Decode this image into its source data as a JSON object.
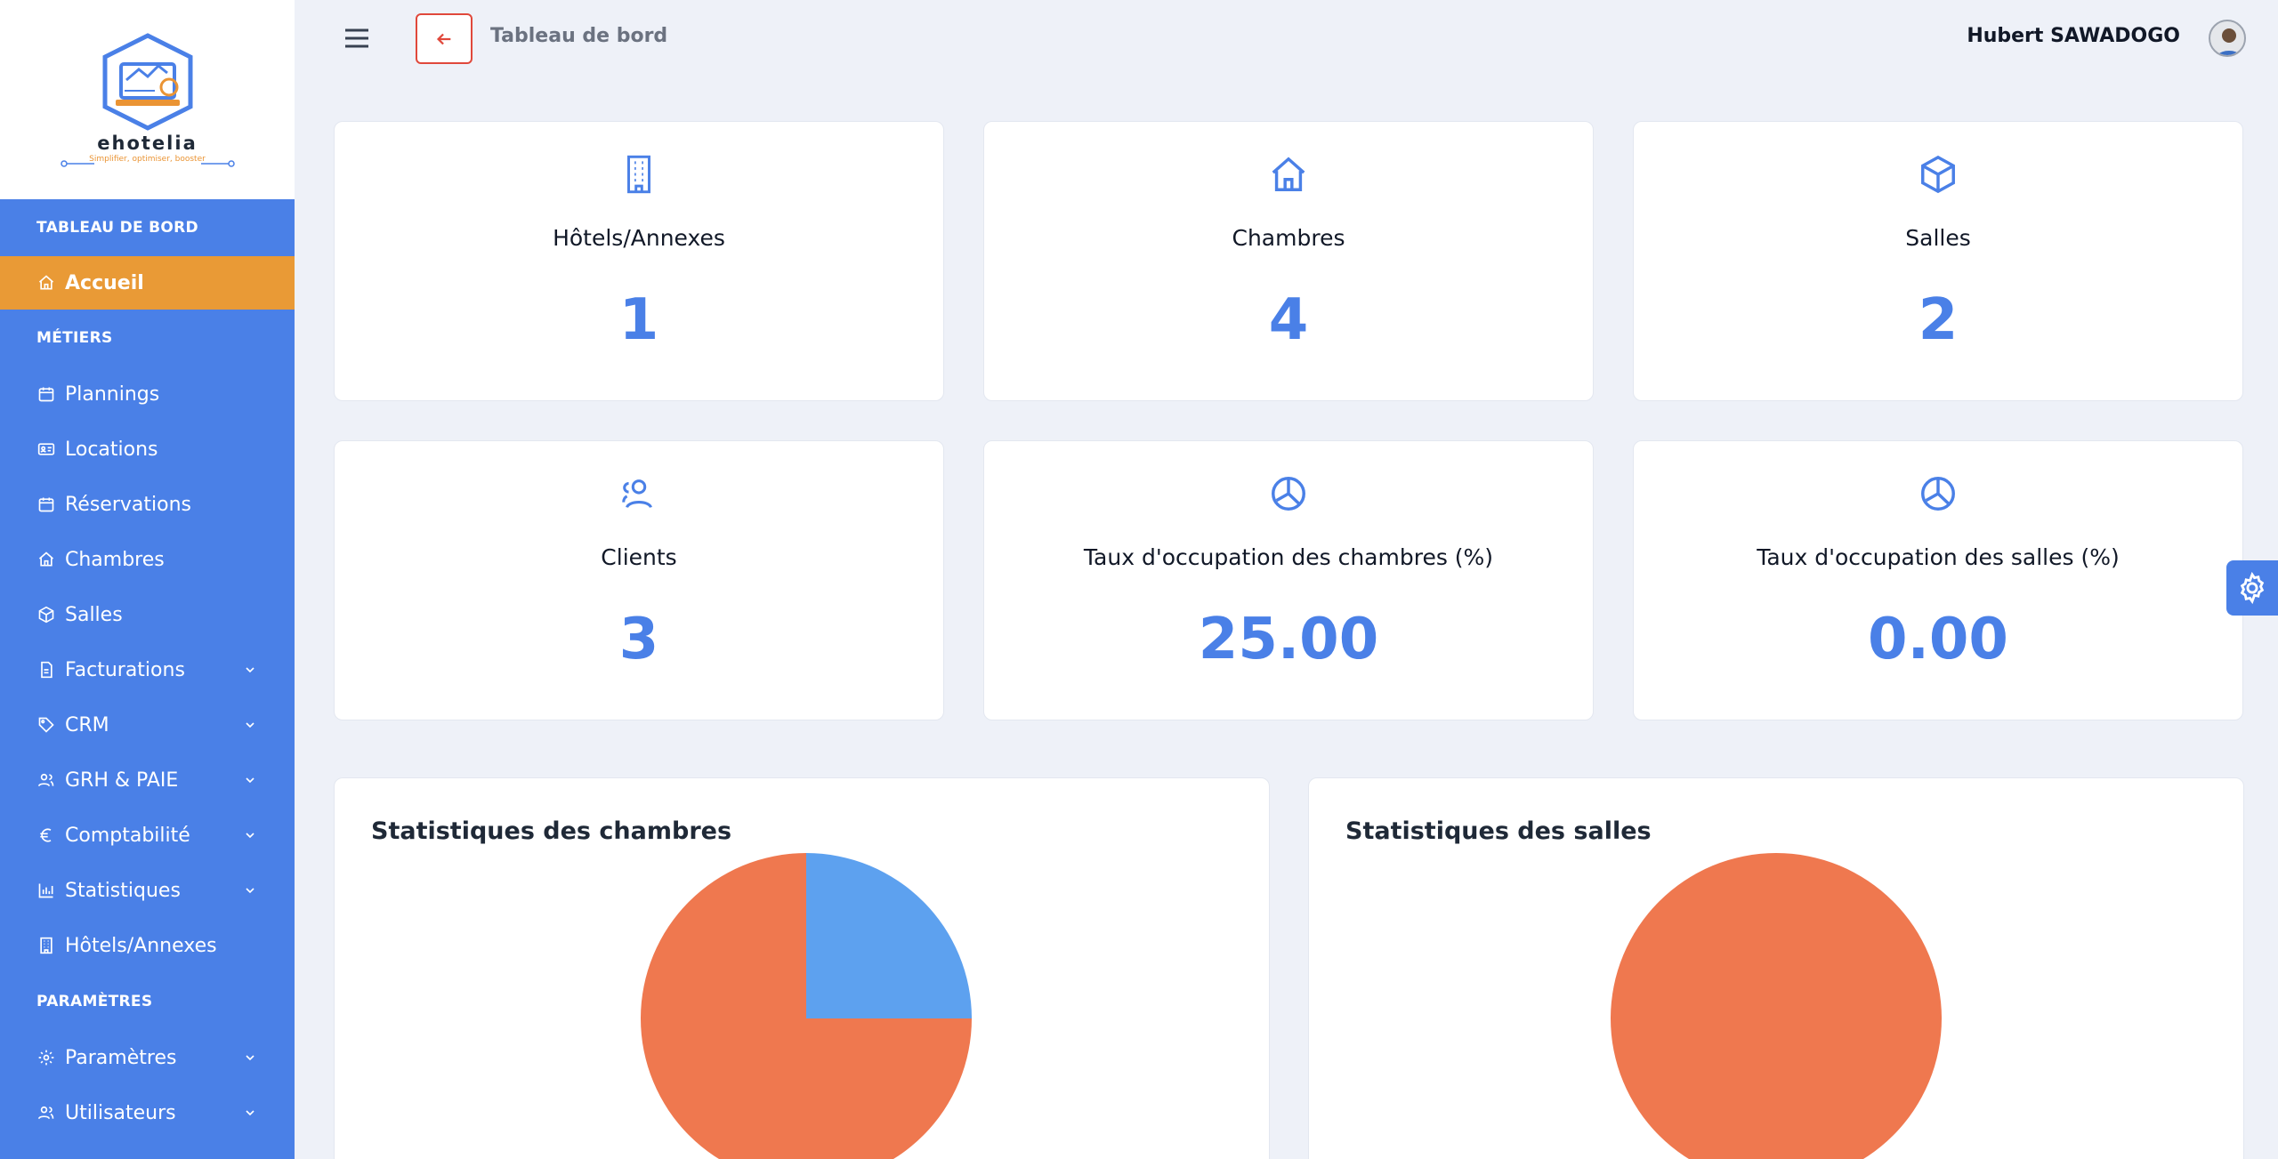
{
  "brand": {
    "name": "ehotelia",
    "tagline": "Simplifier, optimiser, booster"
  },
  "header": {
    "title": "Tableau de bord",
    "user_name": "Hubert SAWADOGO"
  },
  "sidebar": {
    "sections": [
      {
        "label": "TABLEAU DE BORD"
      },
      {
        "label": "MÉTIERS"
      },
      {
        "label": "PARAMÈTRES"
      }
    ],
    "items": [
      {
        "label": "Accueil",
        "icon": "home-icon"
      },
      {
        "label": "Plannings",
        "icon": "calendar-icon"
      },
      {
        "label": "Locations",
        "icon": "id-card-icon"
      },
      {
        "label": "Réservations",
        "icon": "calendar-icon"
      },
      {
        "label": "Chambres",
        "icon": "home-icon"
      },
      {
        "label": "Salles",
        "icon": "cube-icon"
      },
      {
        "label": "Facturations",
        "icon": "invoice-icon"
      },
      {
        "label": "CRM",
        "icon": "tag-icon"
      },
      {
        "label": "GRH & PAIE",
        "icon": "users-icon"
      },
      {
        "label": "Comptabilité",
        "icon": "euro-icon"
      },
      {
        "label": "Statistiques",
        "icon": "bar-chart-icon"
      },
      {
        "label": "Hôtels/Annexes",
        "icon": "building-icon"
      },
      {
        "label": "Paramètres",
        "icon": "gear-icon"
      },
      {
        "label": "Utilisateurs",
        "icon": "users-icon"
      }
    ]
  },
  "stats": [
    {
      "title": "Hôtels/Annexes",
      "value": "1",
      "icon": "building-icon"
    },
    {
      "title": "Chambres",
      "value": "4",
      "icon": "home-icon"
    },
    {
      "title": "Salles",
      "value": "2",
      "icon": "cube-icon"
    },
    {
      "title": "Clients",
      "value": "3",
      "icon": "users-icon"
    },
    {
      "title": "Taux d'occupation des chambres (%)",
      "value": "25.00",
      "icon": "pie-icon"
    },
    {
      "title": "Taux d'occupation des salles (%)",
      "value": "0.00",
      "icon": "pie-icon"
    }
  ],
  "panels": [
    {
      "title": "Statistiques des chambres"
    },
    {
      "title": "Statistiques des salles"
    }
  ],
  "colors": {
    "sidebar": "#4a80e7",
    "active": "#e99a36",
    "accent": "#4a80e7",
    "pie_blue": "#5da1ef",
    "pie_orange": "#ef784f"
  },
  "chart_data": [
    {
      "type": "pie",
      "values": [
        25,
        75
      ],
      "colors": [
        "#5da1ef",
        "#ef784f"
      ]
    },
    {
      "type": "pie",
      "values": [
        0,
        100
      ],
      "colors": [
        "#5da1ef",
        "#ef784f"
      ]
    }
  ]
}
